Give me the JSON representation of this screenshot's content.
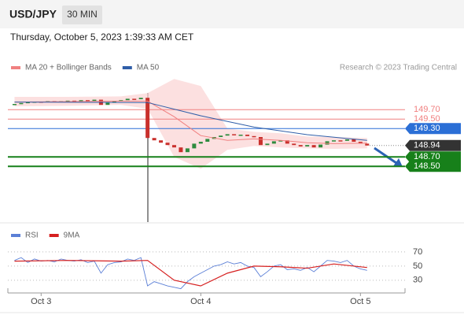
{
  "chart_data": [
    {
      "type": "candlestick",
      "title": "USD/JPY",
      "timeframe": "30 MIN",
      "subtitle": "Thursday, October 5, 2023 1:39:33 AM CET",
      "source": "Research © 2023 Trading Central",
      "x": [
        -4,
        -3,
        -2,
        -1,
        0,
        1,
        2,
        3,
        4,
        5,
        6,
        7,
        8,
        9,
        10,
        11,
        12,
        13,
        14,
        15,
        16,
        17,
        18,
        19,
        20,
        21,
        22,
        23,
        24,
        25,
        26,
        27,
        28,
        29,
        30,
        31,
        32,
        33,
        34,
        35,
        36,
        37,
        38,
        39,
        40,
        41,
        42,
        43,
        44,
        45,
        46,
        47,
        48,
        49
      ],
      "close": [
        149.82,
        149.84,
        149.86,
        149.87,
        149.86,
        149.88,
        149.87,
        149.88,
        149.89,
        149.88,
        149.9,
        149.89,
        149.91,
        149.8,
        149.86,
        149.88,
        149.9,
        149.93,
        149.92,
        149.95,
        149.1,
        149.05,
        149.0,
        148.95,
        148.9,
        148.8,
        148.88,
        148.98,
        149.02,
        149.08,
        149.12,
        149.15,
        149.18,
        149.16,
        149.17,
        149.14,
        149.12,
        148.95,
        148.98,
        149.03,
        149.05,
        148.98,
        148.95,
        148.92,
        148.95,
        148.9,
        148.96,
        149.03,
        149.05,
        149.04,
        149.07,
        149.02,
        148.98,
        148.94
      ],
      "up_color": "#2e8b3e",
      "down_color": "#c9302c",
      "series": [
        {
          "name": "MA 20 + Bollinger Bands",
          "color": "#f08080",
          "band_color": "#fbd3d3",
          "x": [
            -4,
            4,
            12,
            16,
            20,
            24,
            28,
            32,
            36,
            40,
            44,
            49
          ],
          "values": [
            149.86,
            149.87,
            149.88,
            149.88,
            149.55,
            149.15,
            149.05,
            149.08,
            149.05,
            149.0,
            148.98,
            148.99
          ],
          "upper": [
            149.97,
            149.97,
            149.98,
            150.05,
            150.35,
            150.2,
            149.3,
            149.23,
            149.2,
            149.13,
            149.12,
            149.1
          ],
          "lower": [
            149.77,
            149.78,
            149.8,
            149.72,
            148.7,
            148.45,
            148.85,
            148.93,
            148.9,
            148.88,
            148.87,
            148.88
          ]
        },
        {
          "name": "MA 50",
          "color": "#2f5ea8",
          "x": [
            -4,
            16,
            24,
            32,
            40,
            49
          ],
          "values": [
            149.86,
            149.85,
            149.57,
            149.33,
            149.17,
            149.05
          ]
        }
      ],
      "levels": [
        {
          "value": 149.7,
          "label": "149.70",
          "color": "#f08080",
          "style": "text"
        },
        {
          "value": 149.5,
          "label": "149.50",
          "color": "#f08080",
          "style": "text"
        },
        {
          "value": 149.3,
          "label": "149.30",
          "color": "#2b6fd6",
          "style": "tag"
        },
        {
          "value": 148.94,
          "label": "148.94",
          "color": "#333333",
          "style": "dotted"
        },
        {
          "value": 148.7,
          "label": "148.70",
          "color": "#17801a",
          "style": "thick"
        },
        {
          "value": 148.5,
          "label": "148.50",
          "color": "#17801a",
          "style": "thick"
        }
      ],
      "xlim": [
        -5,
        54.7
      ],
      "ylim": [
        147.32,
        150.77
      ]
    },
    {
      "type": "line",
      "series": [
        {
          "name": "RSI",
          "color": "#5b7fd6",
          "x": [
            -4,
            -3,
            -2,
            -1,
            0,
            1,
            2,
            3,
            4,
            5,
            6,
            7,
            8,
            9,
            10,
            11,
            12,
            13,
            14,
            15,
            16,
            17,
            18,
            19,
            20,
            21,
            22,
            23,
            24,
            25,
            26,
            27,
            28,
            29,
            30,
            31,
            32,
            33,
            34,
            35,
            36,
            37,
            38,
            39,
            40,
            41,
            42,
            43,
            44,
            45,
            46,
            47,
            48,
            49
          ],
          "values": [
            58,
            62,
            55,
            60,
            57,
            58,
            56,
            60,
            58,
            57,
            59,
            55,
            57,
            40,
            52,
            55,
            56,
            60,
            58,
            62,
            22,
            28,
            25,
            22,
            20,
            18,
            28,
            35,
            40,
            45,
            50,
            52,
            56,
            53,
            55,
            50,
            48,
            35,
            42,
            50,
            52,
            45,
            46,
            44,
            48,
            42,
            50,
            58,
            57,
            55,
            58,
            50,
            46,
            44
          ]
        },
        {
          "name": "9MA",
          "color": "#d62020",
          "x": [
            -4,
            4,
            12,
            16,
            20,
            24,
            28,
            32,
            36,
            40,
            44,
            49
          ],
          "values": [
            57,
            58,
            57,
            58,
            30,
            22,
            40,
            50,
            49,
            47,
            53,
            48
          ]
        }
      ],
      "xlim": [
        -5,
        54.7
      ],
      "ylim": [
        12,
        100
      ],
      "yticks": [
        30,
        50,
        70
      ],
      "grid": true,
      "xticks": [
        {
          "value": 0,
          "label": "Oct 3"
        },
        {
          "value": 24,
          "label": "Oct 4"
        },
        {
          "value": 48,
          "label": "Oct 5"
        }
      ]
    }
  ]
}
